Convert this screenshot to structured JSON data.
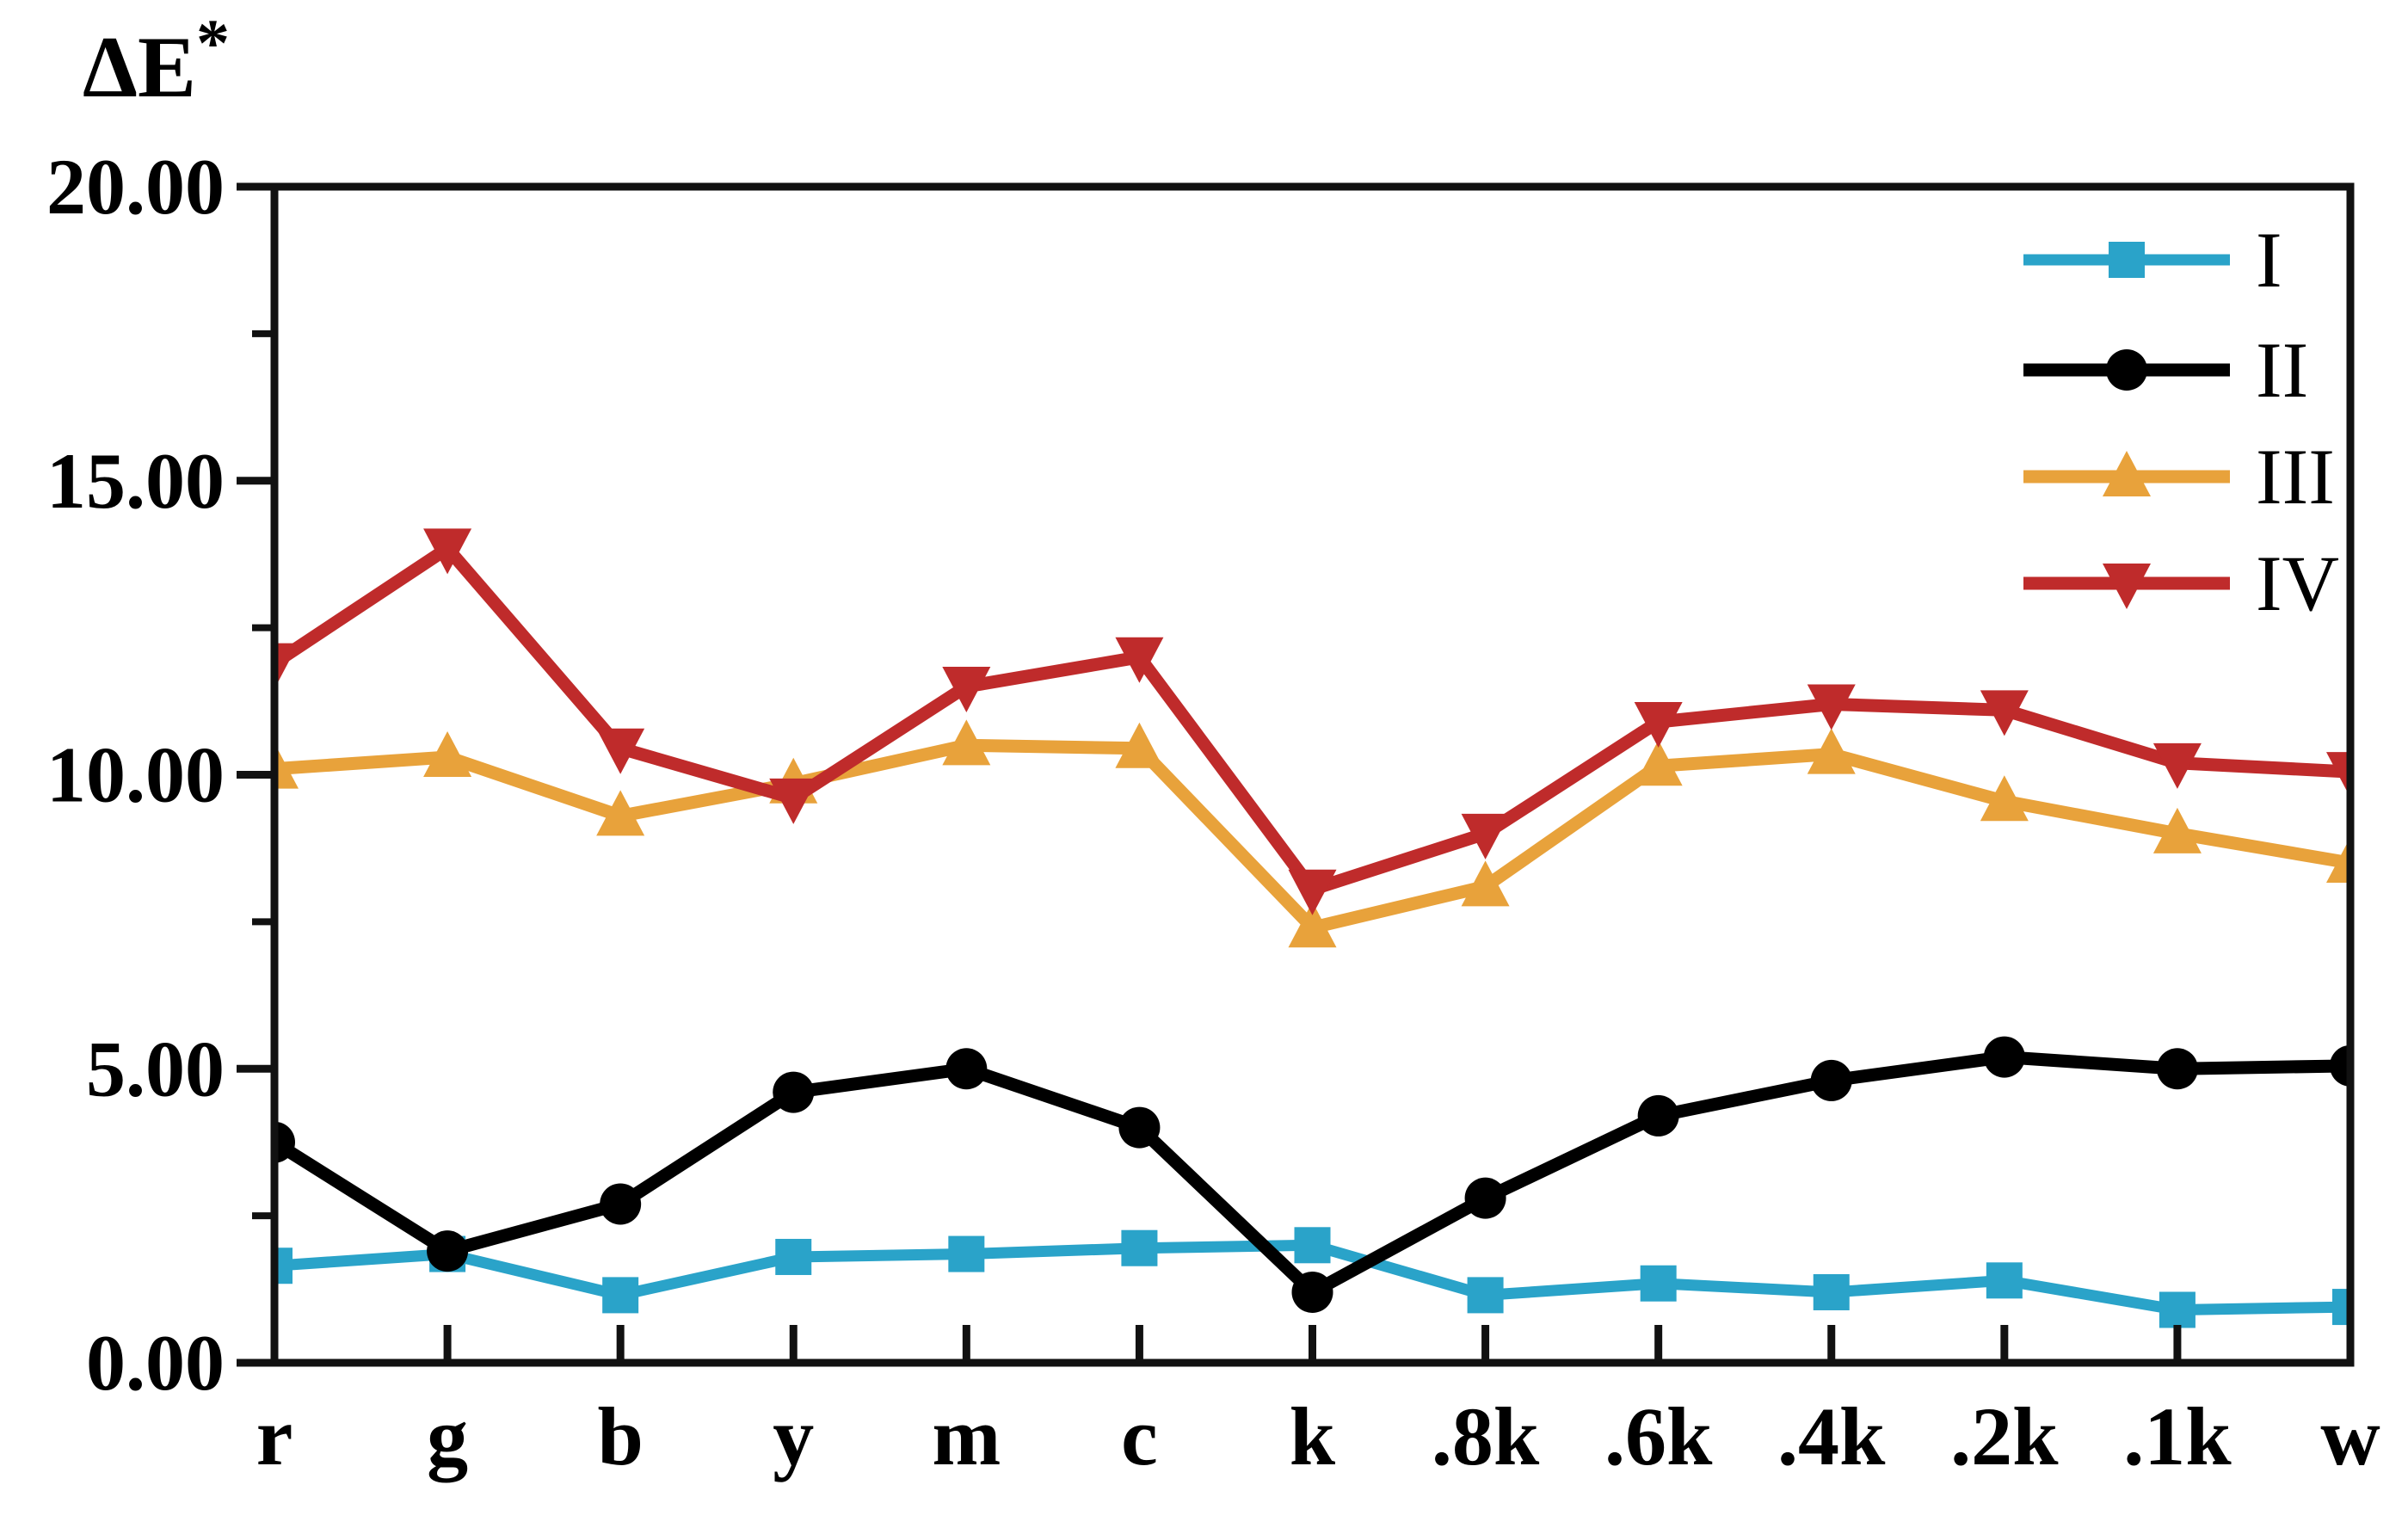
{
  "figure": {
    "background": "#ffffff",
    "ylabel": "ΔE*",
    "ylabel_base": "ΔE",
    "ylabel_sup": "*"
  },
  "axis": {
    "y_tick_labels": [
      "0.00",
      "5.00",
      "10.00",
      "15.00",
      "20.00"
    ],
    "y_tick_values": [
      0,
      5,
      10,
      15,
      20
    ],
    "y_minor_tick_values": [
      2.5,
      7.5,
      12.5,
      17.5
    ],
    "x_tick_labels": [
      "r",
      "g",
      "b",
      "y",
      "m",
      "c",
      "k",
      ".8k",
      ".6k",
      ".4k",
      ".2k",
      ".1k",
      "w"
    ]
  },
  "legend": {
    "position": "top-right",
    "entries": [
      "I",
      "II",
      "III",
      "IV"
    ]
  },
  "colors": {
    "frame": "#111111",
    "text": "#000000",
    "series_I": "#2aa3c9",
    "series_II": "#000000",
    "series_III": "#e8a23b",
    "series_IV": "#bf2b2b"
  },
  "chart_data": {
    "type": "line",
    "title": "",
    "xlabel": "",
    "ylabel": "ΔE*",
    "ylim": [
      0,
      20
    ],
    "y_major_step": 5,
    "y_minor_step": 2.5,
    "grid": false,
    "legend_position": "top-right",
    "categories": [
      "r",
      "g",
      "b",
      "y",
      "m",
      "c",
      "k",
      ".8k",
      ".6k",
      ".4k",
      ".2k",
      ".1k",
      "w"
    ],
    "series": [
      {
        "name": "I",
        "marker": "square",
        "color": "#2aa3c9",
        "values": [
          1.65,
          1.85,
          1.15,
          1.8,
          1.85,
          1.95,
          2.0,
          1.15,
          1.35,
          1.2,
          1.4,
          0.9,
          0.95
        ]
      },
      {
        "name": "II",
        "marker": "circle",
        "color": "#000000",
        "values": [
          3.75,
          1.9,
          2.7,
          4.6,
          5.0,
          4.0,
          1.2,
          2.8,
          4.2,
          4.8,
          5.2,
          5.0,
          5.05
        ]
      },
      {
        "name": "III",
        "marker": "triangle-up",
        "color": "#e8a23b",
        "values": [
          10.1,
          10.3,
          9.3,
          9.85,
          10.5,
          10.45,
          7.4,
          8.1,
          10.15,
          10.35,
          9.55,
          9.0,
          8.5
        ]
      },
      {
        "name": "IV",
        "marker": "triangle-down",
        "color": "#bf2b2b",
        "values": [
          11.9,
          13.85,
          10.45,
          9.6,
          11.5,
          12.0,
          8.05,
          9.0,
          10.9,
          11.2,
          11.1,
          10.2,
          10.05
        ]
      }
    ]
  }
}
